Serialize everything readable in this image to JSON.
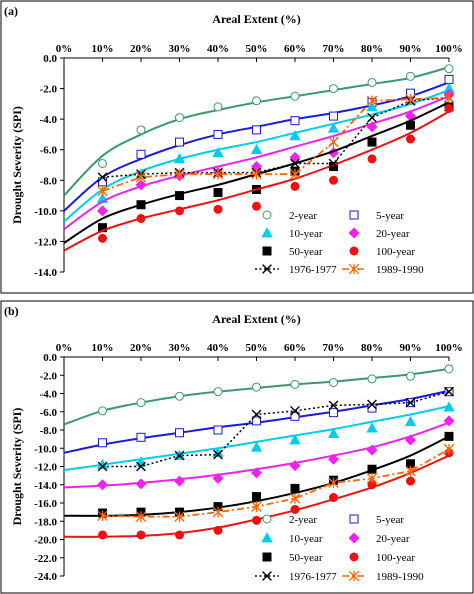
{
  "colors": {
    "2-year": "#3a9a6a",
    "5-year": "#1a1ad8",
    "10-year": "#00ccee",
    "20-year": "#ee22ee",
    "50-year": "#000000",
    "100-year": "#ee1111",
    "1976-1977": "#000000",
    "1989-1990": "#ff6600"
  },
  "chart_data": [
    {
      "panel_label": "(a)",
      "type": "scatter",
      "xlabel": "Areal Extent (%)",
      "ylabel": "Drought Severity (SPI)",
      "x_axis_position": "top",
      "xlim": [
        0,
        100
      ],
      "ylim": [
        -14,
        0
      ],
      "x_tick_values": [
        0,
        10,
        20,
        30,
        40,
        50,
        60,
        70,
        80,
        90,
        100
      ],
      "x_tick_labels": [
        "0%",
        "10%",
        "20%",
        "30%",
        "40%",
        "50%",
        "60%",
        "70%",
        "80%",
        "90%",
        "100%"
      ],
      "y_tick_values": [
        0,
        -2,
        -4,
        -6,
        -8,
        -10,
        -12,
        -14
      ],
      "y_tick_labels": [
        "0.0",
        "-2.0",
        "-4.0",
        "-6.0",
        "-8.0",
        "-10.0",
        "-12.0",
        "-14.0"
      ],
      "legend_position": "bottom-right",
      "legend_layout": [
        [
          "2-year",
          "5-year"
        ],
        [
          "10-year",
          "20-year"
        ],
        [
          "50-year",
          "100-year"
        ],
        [
          "1976-1977",
          "1989-1990"
        ]
      ],
      "series": [
        {
          "name": "2-year",
          "marker": "circle-open",
          "x": [
            10,
            20,
            30,
            40,
            50,
            60,
            70,
            80,
            90,
            100
          ],
          "y": [
            -6.9,
            -4.7,
            -3.9,
            -3.2,
            -2.8,
            -2.5,
            -2.0,
            -1.6,
            -1.2,
            -0.7
          ],
          "fit_x": [
            0,
            10,
            20,
            30,
            40,
            50,
            60,
            70,
            80,
            90,
            100
          ],
          "fit_y": [
            -9.0,
            -6.4,
            -5.0,
            -4.0,
            -3.4,
            -2.9,
            -2.5,
            -2.1,
            -1.7,
            -1.3,
            -0.6
          ]
        },
        {
          "name": "5-year",
          "marker": "square-open",
          "x": [
            10,
            20,
            30,
            40,
            50,
            60,
            70,
            80,
            90,
            100
          ],
          "y": [
            -8.1,
            -6.3,
            -5.5,
            -5.0,
            -4.7,
            -4.1,
            -3.8,
            -2.9,
            -2.3,
            -1.4
          ],
          "fit_x": [
            0,
            10,
            20,
            30,
            40,
            50,
            60,
            70,
            80,
            90,
            100
          ],
          "fit_y": [
            -10.0,
            -7.8,
            -6.6,
            -5.7,
            -5.0,
            -4.5,
            -4.0,
            -3.6,
            -3.1,
            -2.5,
            -1.6
          ]
        },
        {
          "name": "10-year",
          "marker": "triangle-filled",
          "x": [
            10,
            20,
            30,
            40,
            50,
            60,
            70,
            80,
            90,
            100
          ],
          "y": [
            -9.2,
            -7.6,
            -6.6,
            -6.2,
            -6.0,
            -5.1,
            -4.6,
            -3.2,
            -2.8,
            -2.0
          ],
          "fit_x": [
            0,
            10,
            20,
            30,
            40,
            50,
            60,
            70,
            80,
            90,
            100
          ],
          "fit_y": [
            -10.7,
            -8.6,
            -7.4,
            -6.6,
            -6.0,
            -5.5,
            -4.9,
            -4.3,
            -3.7,
            -3.0,
            -2.1
          ]
        },
        {
          "name": "20-year",
          "marker": "diamond-filled",
          "x": [
            10,
            20,
            30,
            40,
            50,
            60,
            70,
            80,
            90,
            100
          ],
          "y": [
            -10.0,
            -8.3,
            -7.7,
            -7.5,
            -7.1,
            -6.5,
            -6.2,
            -4.5,
            -3.8,
            -2.4
          ],
          "fit_x": [
            0,
            10,
            20,
            30,
            40,
            50,
            60,
            70,
            80,
            90,
            100
          ],
          "fit_y": [
            -11.2,
            -9.4,
            -8.4,
            -7.7,
            -7.1,
            -6.5,
            -5.8,
            -5.1,
            -4.3,
            -3.5,
            -2.5
          ]
        },
        {
          "name": "50-year",
          "marker": "square-filled",
          "x": [
            10,
            20,
            30,
            40,
            50,
            60,
            70,
            80,
            90,
            100
          ],
          "y": [
            -11.1,
            -9.6,
            -9.0,
            -8.8,
            -8.6,
            -7.4,
            -7.1,
            -5.5,
            -4.4,
            -3.2
          ],
          "fit_x": [
            0,
            10,
            20,
            30,
            40,
            50,
            60,
            70,
            80,
            90,
            100
          ],
          "fit_y": [
            -12.1,
            -10.5,
            -9.6,
            -8.9,
            -8.3,
            -7.6,
            -6.9,
            -6.1,
            -5.1,
            -4.1,
            -2.9
          ]
        },
        {
          "name": "100-year",
          "marker": "circle-filled",
          "x": [
            10,
            20,
            30,
            40,
            50,
            60,
            70,
            80,
            90,
            100
          ],
          "y": [
            -11.8,
            -10.5,
            -10.0,
            -9.9,
            -9.7,
            -8.4,
            -8.0,
            -6.6,
            -5.3,
            -3.3
          ],
          "fit_x": [
            0,
            10,
            20,
            30,
            40,
            50,
            60,
            70,
            80,
            90,
            100
          ],
          "fit_y": [
            -12.6,
            -11.3,
            -10.5,
            -9.9,
            -9.3,
            -8.6,
            -7.9,
            -7.0,
            -6.0,
            -4.9,
            -3.5
          ]
        },
        {
          "name": "1976-1977",
          "marker": "x-cross",
          "line_style": "dotted",
          "x": [
            10,
            20,
            30,
            40,
            50,
            60,
            70,
            80,
            90,
            100
          ],
          "y": [
            -7.8,
            -7.6,
            -7.5,
            -7.5,
            -7.5,
            -6.9,
            -6.9,
            -3.9,
            -2.8,
            -2.6
          ]
        },
        {
          "name": "1989-1990",
          "marker": "asterisk",
          "line_style": "dashdot",
          "x": [
            10,
            20,
            30,
            40,
            50,
            60,
            70,
            80,
            90,
            100
          ],
          "y": [
            -8.7,
            -7.8,
            -7.6,
            -7.6,
            -7.6,
            -7.6,
            -5.5,
            -2.8,
            -2.7,
            -2.6
          ]
        }
      ]
    },
    {
      "panel_label": "(b)",
      "type": "scatter",
      "xlabel": "Areal Extent (%)",
      "ylabel": "Drought Severity (SPI)",
      "x_axis_position": "top",
      "xlim": [
        0,
        100
      ],
      "ylim": [
        -24,
        0
      ],
      "x_tick_values": [
        0,
        10,
        20,
        30,
        40,
        50,
        60,
        70,
        80,
        90,
        100
      ],
      "x_tick_labels": [
        "0%",
        "10%",
        "20%",
        "30%",
        "40%",
        "50%",
        "60%",
        "70%",
        "80%",
        "90%",
        "100%"
      ],
      "y_tick_values": [
        0,
        -2,
        -4,
        -6,
        -8,
        -10,
        -12,
        -14,
        -16,
        -18,
        -20,
        -22,
        -24
      ],
      "y_tick_labels": [
        "0.0",
        "-2.0",
        "-4.0",
        "-6.0",
        "-8.0",
        "-10.0",
        "-12.0",
        "-14.0",
        "-16.0",
        "-18.0",
        "-20.0",
        "-22.0",
        "-24.0"
      ],
      "legend_position": "bottom-right",
      "legend_layout": [
        [
          "2-year",
          "5-year"
        ],
        [
          "10-year",
          "20-year"
        ],
        [
          "50-year",
          "100-year"
        ],
        [
          "1976-1977",
          "1989-1990"
        ]
      ],
      "series": [
        {
          "name": "2-year",
          "marker": "circle-open",
          "x": [
            10,
            20,
            30,
            40,
            50,
            60,
            70,
            80,
            90,
            100
          ],
          "y": [
            -5.9,
            -5.0,
            -4.3,
            -3.8,
            -3.3,
            -3.0,
            -2.8,
            -2.4,
            -2.1,
            -1.3
          ],
          "fit_x": [
            0,
            10,
            20,
            30,
            40,
            50,
            60,
            70,
            80,
            90,
            100
          ],
          "fit_y": [
            -7.4,
            -5.9,
            -5.0,
            -4.3,
            -3.8,
            -3.4,
            -3.0,
            -2.7,
            -2.3,
            -1.9,
            -1.3
          ]
        },
        {
          "name": "5-year",
          "marker": "square-open",
          "x": [
            10,
            20,
            30,
            40,
            50,
            60,
            70,
            80,
            90,
            100
          ],
          "y": [
            -9.4,
            -8.8,
            -8.3,
            -8.0,
            -7.0,
            -6.5,
            -6.1,
            -5.6,
            -5.0,
            -3.8
          ],
          "fit_x": [
            0,
            10,
            20,
            30,
            40,
            50,
            60,
            70,
            80,
            90,
            100
          ],
          "fit_y": [
            -10.5,
            -9.6,
            -8.9,
            -8.3,
            -7.7,
            -7.2,
            -6.6,
            -6.0,
            -5.3,
            -4.6,
            -3.7
          ]
        },
        {
          "name": "10-year",
          "marker": "triangle-filled",
          "x": [
            10,
            20,
            30,
            40,
            50,
            60,
            70,
            80,
            90,
            100
          ],
          "y": [
            -11.8,
            -11.5,
            -10.8,
            -10.5,
            -9.9,
            -9.1,
            -8.4,
            -7.8,
            -7.1,
            -5.5
          ],
          "fit_x": [
            0,
            10,
            20,
            30,
            40,
            50,
            60,
            70,
            80,
            90,
            100
          ],
          "fit_y": [
            -12.4,
            -11.8,
            -11.2,
            -10.6,
            -10.0,
            -9.3,
            -8.6,
            -7.9,
            -7.1,
            -6.3,
            -5.4
          ]
        },
        {
          "name": "20-year",
          "marker": "diamond-filled",
          "x": [
            10,
            20,
            30,
            40,
            50,
            60,
            70,
            80,
            90,
            100
          ],
          "y": [
            -14.0,
            -13.9,
            -13.6,
            -13.3,
            -12.7,
            -11.9,
            -11.2,
            -10.2,
            -9.1,
            -7.0
          ],
          "fit_x": [
            0,
            10,
            20,
            30,
            40,
            50,
            60,
            70,
            80,
            90,
            100
          ],
          "fit_y": [
            -14.3,
            -14.1,
            -13.8,
            -13.4,
            -12.9,
            -12.3,
            -11.6,
            -10.8,
            -9.9,
            -8.7,
            -7.2
          ]
        },
        {
          "name": "50-year",
          "marker": "square-filled",
          "x": [
            10,
            20,
            30,
            40,
            50,
            60,
            70,
            80,
            90,
            100
          ],
          "y": [
            -17.1,
            -17.0,
            -17.0,
            -16.4,
            -15.3,
            -14.4,
            -13.5,
            -12.3,
            -11.7,
            -8.7
          ],
          "fit_x": [
            0,
            10,
            20,
            30,
            40,
            50,
            60,
            70,
            80,
            90,
            100
          ],
          "fit_y": [
            -17.4,
            -17.4,
            -17.3,
            -17.0,
            -16.5,
            -15.8,
            -14.9,
            -13.8,
            -12.4,
            -10.8,
            -8.7
          ]
        },
        {
          "name": "100-year",
          "marker": "circle-filled",
          "x": [
            10,
            20,
            30,
            40,
            50,
            60,
            70,
            80,
            90,
            100
          ],
          "y": [
            -19.5,
            -19.5,
            -19.5,
            -19.0,
            -17.9,
            -16.7,
            -15.4,
            -14.0,
            -13.6,
            -10.5
          ],
          "fit_x": [
            0,
            10,
            20,
            30,
            40,
            50,
            60,
            70,
            80,
            90,
            100
          ],
          "fit_y": [
            -19.7,
            -19.7,
            -19.6,
            -19.3,
            -18.7,
            -17.8,
            -16.8,
            -15.6,
            -14.3,
            -12.7,
            -10.8
          ]
        },
        {
          "name": "1976-1977",
          "marker": "x-cross",
          "line_style": "dotted",
          "x": [
            10,
            20,
            30,
            40,
            50,
            60,
            70,
            80,
            90,
            100
          ],
          "y": [
            -12.0,
            -12.0,
            -10.8,
            -10.7,
            -6.3,
            -5.9,
            -5.3,
            -5.2,
            -5.0,
            -3.8
          ]
        },
        {
          "name": "1989-1990",
          "marker": "asterisk",
          "line_style": "dashdot",
          "x": [
            10,
            20,
            30,
            40,
            50,
            60,
            70,
            80,
            90,
            100
          ],
          "y": [
            -17.4,
            -17.5,
            -17.5,
            -17.0,
            -16.4,
            -15.5,
            -13.8,
            -13.3,
            -12.5,
            -10.1
          ]
        }
      ]
    }
  ]
}
